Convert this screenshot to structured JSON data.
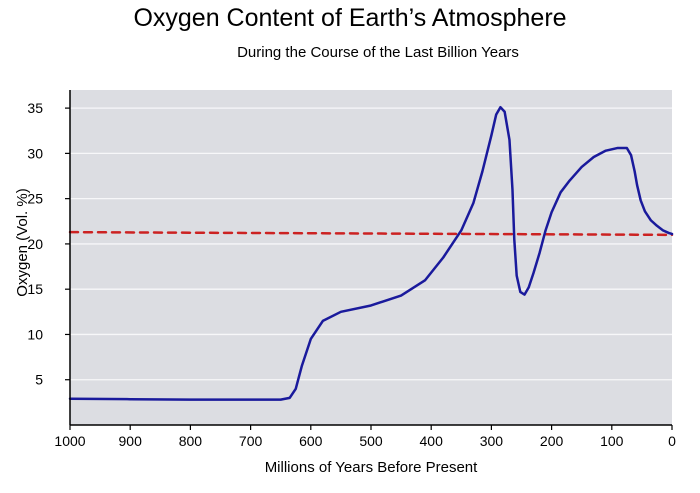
{
  "chart_data": {
    "type": "line",
    "title": "Oxygen Content of Earth’s Atmosphere",
    "subtitle": "During the Course of the Last Billion Years",
    "xlabel": "Millions of Years Before Present",
    "ylabel": "Oxygen (Vol. %)",
    "xlim": [
      1000,
      0
    ],
    "ylim": [
      0,
      37
    ],
    "x_ticks": [
      1000,
      900,
      800,
      700,
      600,
      500,
      400,
      300,
      200,
      100,
      0
    ],
    "y_ticks": [
      5,
      10,
      15,
      20,
      25,
      30,
      35
    ],
    "grid": true,
    "series": [
      {
        "color": "#1a1a9c",
        "x": [
          1000,
          900,
          800,
          700,
          650,
          635,
          625,
          615,
          600,
          580,
          550,
          500,
          450,
          410,
          380,
          350,
          330,
          315,
          300,
          292,
          285,
          278,
          270,
          265,
          262,
          258,
          252,
          245,
          238,
          230,
          220,
          210,
          200,
          185,
          170,
          150,
          130,
          110,
          90,
          75,
          68,
          62,
          58,
          52,
          45,
          35,
          25,
          15,
          5,
          0
        ],
        "y": [
          2.9,
          2.85,
          2.8,
          2.8,
          2.8,
          3.0,
          4.0,
          6.5,
          9.5,
          11.5,
          12.5,
          13.2,
          14.3,
          16.0,
          18.5,
          21.5,
          24.5,
          28.0,
          32.0,
          34.3,
          35.1,
          34.6,
          31.5,
          26.0,
          20.5,
          16.5,
          14.7,
          14.4,
          15.2,
          16.8,
          19.0,
          21.5,
          23.5,
          25.7,
          27.0,
          28.5,
          29.6,
          30.3,
          30.6,
          30.6,
          29.8,
          28.0,
          26.5,
          24.8,
          23.6,
          22.6,
          22.0,
          21.5,
          21.2,
          21.1
        ]
      },
      {
        "style": "dashed",
        "color": "#cc2222",
        "x": [
          1000,
          0
        ],
        "y": [
          21.3,
          21.0
        ]
      }
    ]
  }
}
